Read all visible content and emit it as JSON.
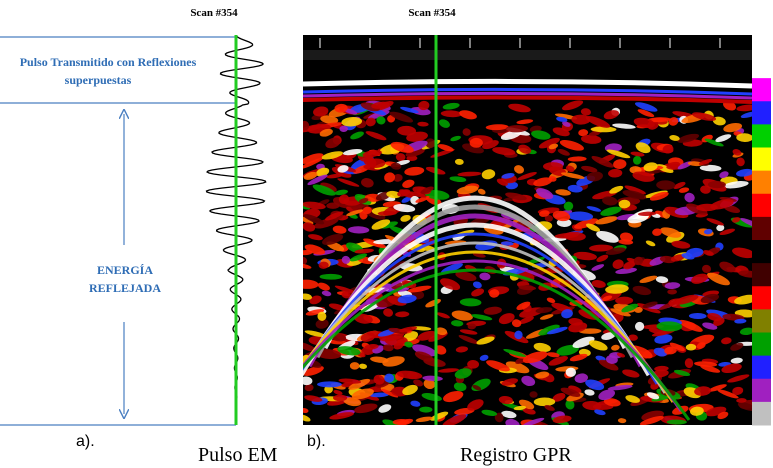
{
  "panel_a": {
    "scan_label": "Scan #354",
    "top_annotation": [
      "Pulso Transmitido con Reflexiones",
      "superpuestas"
    ],
    "middle_annotation": [
      "ENERGÍA",
      "REFLEJADA"
    ],
    "panel_letter": "a).",
    "caption": "Pulso EM"
  },
  "panel_b": {
    "scan_label": "Scan #354",
    "panel_letter": "b).",
    "caption": "Registro GPR"
  }
}
